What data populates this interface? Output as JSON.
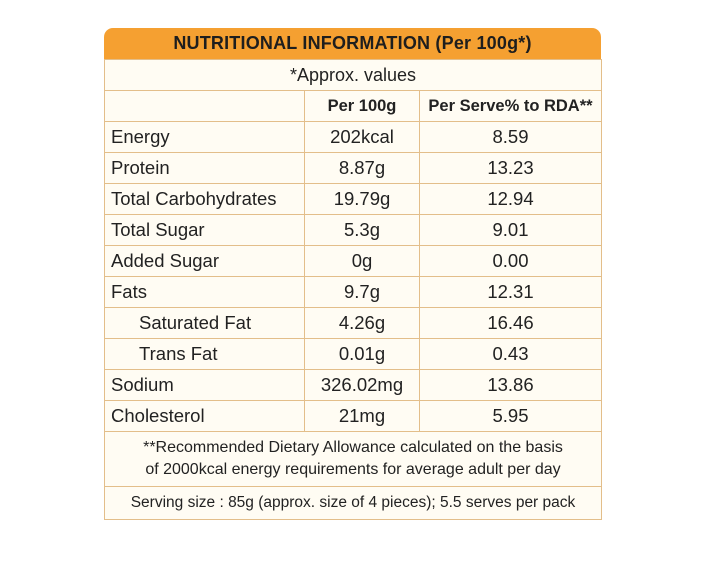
{
  "panel": {
    "title": "NUTRITIONAL INFORMATION (Per 100g*)",
    "approx_note": "*Approx. values",
    "headers": [
      "",
      "Per 100g",
      "Per Serve% to RDA**"
    ],
    "rows": [
      {
        "name": "Energy",
        "per100g": "202kcal",
        "rda": "8.59"
      },
      {
        "name": "Protein",
        "per100g": "8.87g",
        "rda": "13.23"
      },
      {
        "name": "Total Carbohydrates",
        "per100g": "19.79g",
        "rda": "12.94"
      },
      {
        "name": "Total Sugar",
        "per100g": "5.3g",
        "rda": "9.01"
      },
      {
        "name": "Added Sugar",
        "per100g": "0g",
        "rda": "0.00"
      },
      {
        "name": "Fats",
        "per100g": "9.7g",
        "rda": "12.31"
      },
      {
        "name": "Saturated Fat",
        "per100g": "4.26g",
        "rda": "16.46"
      },
      {
        "name": "Trans Fat",
        "per100g": "0.01g",
        "rda": "0.43"
      },
      {
        "name": "Sodium",
        "per100g": "326.02mg",
        "rda": "13.86"
      },
      {
        "name": "Cholesterol",
        "per100g": "21mg",
        "rda": "5.95"
      }
    ],
    "footnote_line1": "**Recommended Dietary Allowance calculated on the basis",
    "footnote_line2": "of 2000kcal energy requirements for average adult per day",
    "serving": "Serving size : 85g (approx. size of 4 pieces); 5.5 serves per pack"
  },
  "colors": {
    "header_orange": "#f5a031",
    "border": "#e3be8a",
    "background": "#fffcf3"
  }
}
